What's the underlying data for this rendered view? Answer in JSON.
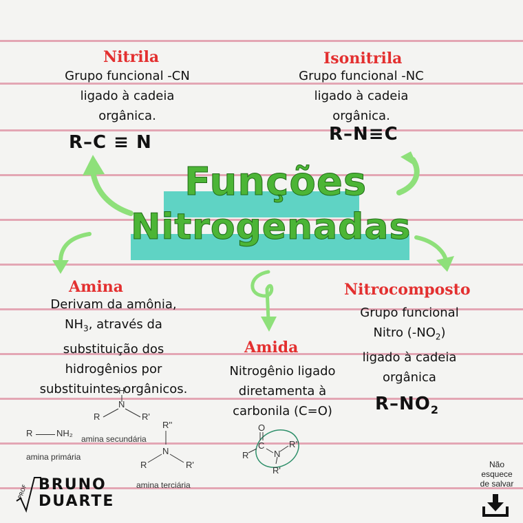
{
  "title": {
    "line1": "Funções",
    "line2": "Nitrogenadas"
  },
  "nitrila": {
    "heading": "Nitrila",
    "line1": "Grupo funcional -CN",
    "line2": "ligado à cadeia",
    "line3": "orgânica.",
    "formula": "R–C ≡ N"
  },
  "isonitrila": {
    "heading": "Isonitrila",
    "line1": "Grupo funcional -NC",
    "line2": "ligado à cadeia",
    "line3": "orgânica.",
    "formula": "R–N≡C"
  },
  "amina": {
    "heading": "Amina",
    "line1": "Derivam da amônia,",
    "line2_a": "NH",
    "line2_sub": "3",
    "line2_b": ", através da",
    "line3": "substituição dos",
    "line4": "hidrogênios por",
    "line5": "substituintes orgânicos.",
    "primary": {
      "r": "R",
      "n": "NH₂",
      "caption": "amina primária"
    },
    "secondary": {
      "h": "H",
      "n": "N",
      "r": "R",
      "r2": "R'",
      "caption": "amina secundária"
    },
    "tertiary": {
      "r3": "R''",
      "n": "N",
      "r": "R",
      "r2": "R'",
      "caption": "amina terciária"
    }
  },
  "amida": {
    "heading": "Amida",
    "line1": "Nitrogênio ligado",
    "line2": "diretamenta à",
    "line3": "carbonila (C=O)",
    "structure": {
      "o": "O",
      "c": "C",
      "n": "N",
      "r": "R",
      "r2": "R''",
      "r3": "R'"
    }
  },
  "nitrocomposto": {
    "heading": "Nitrocomposto",
    "line1": "Grupo funcional",
    "line2_a": "Nitro (-NO",
    "line2_sub": "2",
    "line2_b": ")",
    "line3": "ligado à cadeia",
    "line4": "orgânica",
    "formula_a": "R–NO",
    "formula_sub": "2"
  },
  "logo": {
    "prof": "PROF",
    "name1": "BRUNO",
    "name2": "DUARTE"
  },
  "save": {
    "line1": "Não",
    "line2": "esquece",
    "line3": "de salvar",
    "icon": "download-icon"
  },
  "colors": {
    "heading": "#e33030",
    "title_green": "#4cb536",
    "highlight": "#5fd3c4",
    "arrow": "#8ee07a",
    "rule": "#e3a6b4"
  }
}
